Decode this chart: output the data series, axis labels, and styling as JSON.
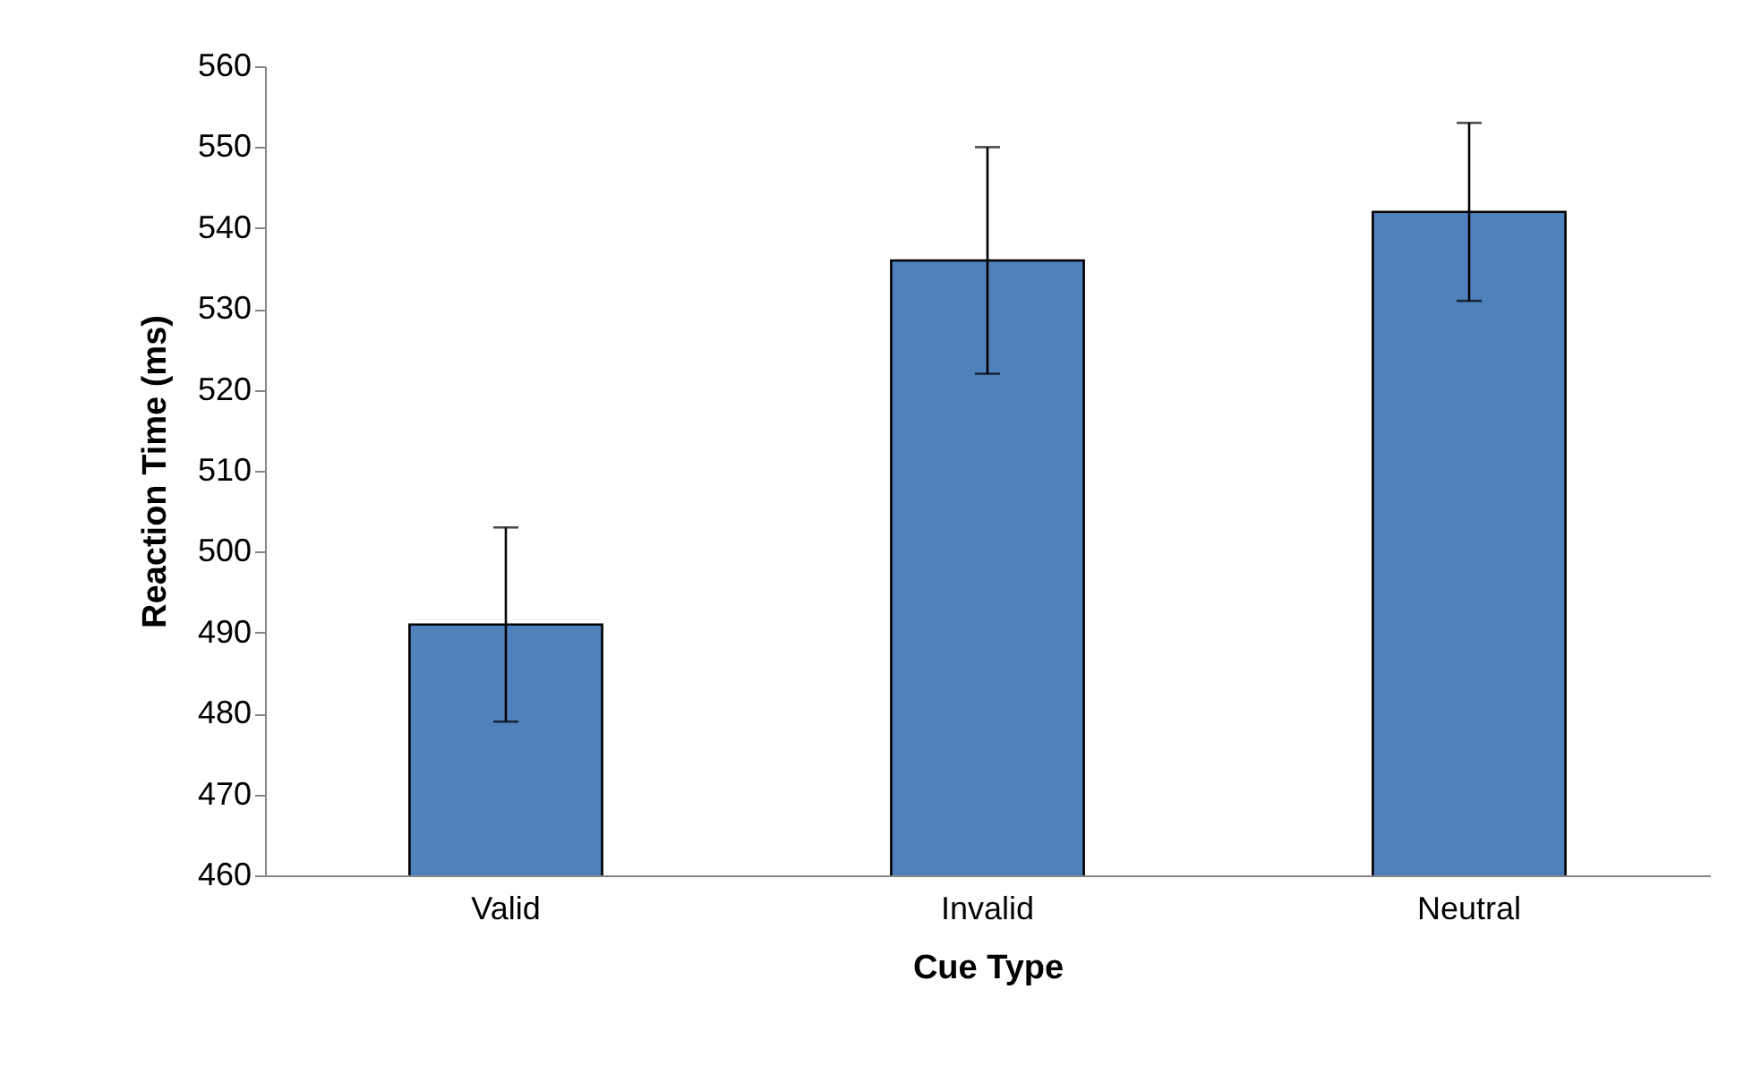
{
  "chart_data": {
    "type": "bar",
    "xlabel": "Cue Type",
    "ylabel": "Reaction Time (ms)",
    "categories": [
      "Valid",
      "Invalid",
      "Neutral"
    ],
    "values": [
      491,
      536,
      542
    ],
    "errors": [
      12,
      14,
      11
    ],
    "color": "#4f81bd",
    "ylim": [
      460,
      560
    ],
    "yticks": [
      460,
      470,
      480,
      490,
      500,
      510,
      520,
      530,
      540,
      550,
      560
    ],
    "grid": false
  }
}
